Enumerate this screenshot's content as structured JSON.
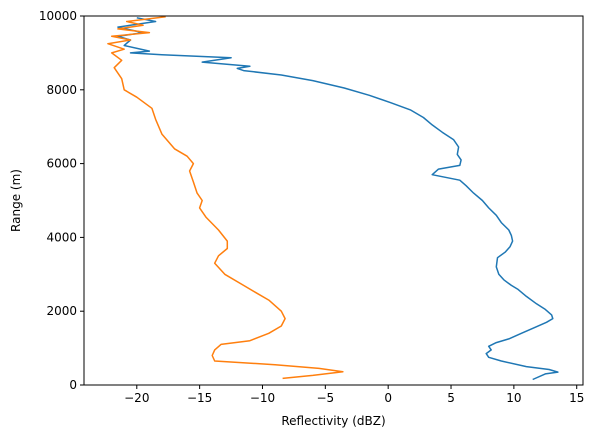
{
  "chart_data": {
    "type": "line",
    "title": "",
    "xlabel": "Reflectivity (dBZ)",
    "ylabel": "Range (m)",
    "xlim": [
      -24.2,
      15.5
    ],
    "ylim": [
      0,
      10000
    ],
    "x_ticks": [
      -20,
      -15,
      -10,
      -5,
      0,
      5,
      10,
      15
    ],
    "y_ticks": [
      0,
      2000,
      4000,
      6000,
      8000,
      10000
    ],
    "grid": false,
    "legend": "none",
    "series": [
      {
        "color": "#1f77b4",
        "points": [
          [
            11.5,
            150
          ],
          [
            12.5,
            300
          ],
          [
            13.5,
            350
          ],
          [
            12.8,
            420
          ],
          [
            11.0,
            500
          ],
          [
            9.0,
            650
          ],
          [
            8.0,
            750
          ],
          [
            7.8,
            850
          ],
          [
            8.2,
            950
          ],
          [
            8.0,
            1050
          ],
          [
            8.6,
            1150
          ],
          [
            9.6,
            1250
          ],
          [
            10.6,
            1400
          ],
          [
            11.6,
            1550
          ],
          [
            12.6,
            1700
          ],
          [
            13.1,
            1800
          ],
          [
            13.0,
            1900
          ],
          [
            12.5,
            2050
          ],
          [
            11.8,
            2200
          ],
          [
            11.0,
            2400
          ],
          [
            10.3,
            2600
          ],
          [
            9.8,
            2700
          ],
          [
            9.2,
            2850
          ],
          [
            8.8,
            3000
          ],
          [
            8.6,
            3200
          ],
          [
            8.7,
            3450
          ],
          [
            9.3,
            3600
          ],
          [
            9.7,
            3750
          ],
          [
            9.9,
            3900
          ],
          [
            9.8,
            4050
          ],
          [
            9.6,
            4200
          ],
          [
            9.0,
            4400
          ],
          [
            8.6,
            4600
          ],
          [
            8.0,
            4800
          ],
          [
            7.5,
            5000
          ],
          [
            6.8,
            5200
          ],
          [
            6.2,
            5400
          ],
          [
            5.7,
            5550
          ],
          [
            3.5,
            5700
          ],
          [
            4.0,
            5850
          ],
          [
            5.7,
            5950
          ],
          [
            5.8,
            6100
          ],
          [
            5.5,
            6250
          ],
          [
            5.6,
            6450
          ],
          [
            5.2,
            6650
          ],
          [
            4.3,
            6850
          ],
          [
            3.5,
            7050
          ],
          [
            2.8,
            7250
          ],
          [
            1.8,
            7450
          ],
          [
            0.2,
            7650
          ],
          [
            -1.5,
            7850
          ],
          [
            -3.5,
            8050
          ],
          [
            -6.0,
            8250
          ],
          [
            -8.5,
            8400
          ],
          [
            -11.5,
            8520
          ],
          [
            -12.0,
            8580
          ],
          [
            -11.0,
            8640
          ],
          [
            -14.8,
            8750
          ],
          [
            -12.5,
            8870
          ],
          [
            -18.0,
            8950
          ],
          [
            -20.5,
            9000
          ],
          [
            -19.0,
            9050
          ],
          [
            -21.0,
            9200
          ],
          [
            -20.5,
            9350
          ],
          [
            -21.5,
            9450
          ],
          [
            -19.5,
            9550
          ],
          [
            -21.5,
            9700
          ],
          [
            -18.5,
            9850
          ],
          [
            -20.0,
            9950
          ]
        ]
      },
      {
        "color": "#ff7f0e",
        "points": [
          [
            -8.4,
            180
          ],
          [
            -6.0,
            260
          ],
          [
            -3.6,
            360
          ],
          [
            -5.5,
            450
          ],
          [
            -9.0,
            550
          ],
          [
            -13.8,
            650
          ],
          [
            -14.0,
            800
          ],
          [
            -13.8,
            950
          ],
          [
            -13.3,
            1100
          ],
          [
            -11.0,
            1200
          ],
          [
            -9.5,
            1400
          ],
          [
            -8.5,
            1600
          ],
          [
            -8.2,
            1800
          ],
          [
            -8.5,
            2000
          ],
          [
            -9.5,
            2300
          ],
          [
            -10.5,
            2500
          ],
          [
            -11.5,
            2700
          ],
          [
            -13.0,
            3000
          ],
          [
            -13.8,
            3300
          ],
          [
            -13.5,
            3500
          ],
          [
            -12.8,
            3700
          ],
          [
            -12.8,
            3900
          ],
          [
            -13.5,
            4200
          ],
          [
            -14.5,
            4550
          ],
          [
            -15.0,
            4800
          ],
          [
            -14.8,
            5000
          ],
          [
            -15.2,
            5200
          ],
          [
            -15.5,
            5500
          ],
          [
            -15.8,
            5800
          ],
          [
            -15.5,
            6000
          ],
          [
            -16.0,
            6200
          ],
          [
            -17.0,
            6400
          ],
          [
            -18.0,
            6800
          ],
          [
            -18.5,
            7200
          ],
          [
            -18.8,
            7500
          ],
          [
            -20.0,
            7800
          ],
          [
            -21.0,
            8000
          ],
          [
            -21.2,
            8300
          ],
          [
            -21.8,
            8600
          ],
          [
            -21.2,
            8800
          ],
          [
            -22.0,
            9000
          ],
          [
            -21.0,
            9100
          ],
          [
            -22.3,
            9250
          ],
          [
            -20.5,
            9350
          ],
          [
            -22.0,
            9450
          ],
          [
            -19.0,
            9550
          ],
          [
            -21.5,
            9650
          ],
          [
            -19.5,
            9750
          ],
          [
            -20.8,
            9850
          ],
          [
            -17.7,
            9980
          ]
        ]
      }
    ]
  }
}
